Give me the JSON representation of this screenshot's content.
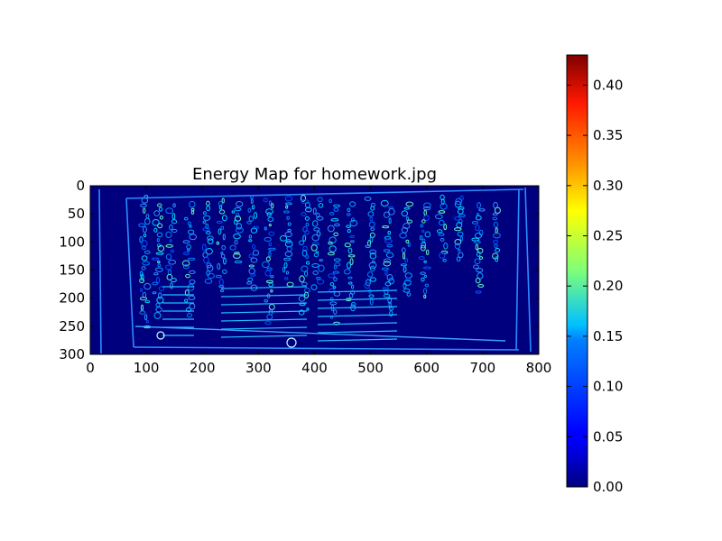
{
  "chart_data": {
    "type": "heatmap",
    "title": "Energy Map for homework.jpg",
    "xlabel": "",
    "ylabel": "",
    "x_ticks": [
      0,
      100,
      200,
      300,
      400,
      500,
      600,
      700,
      800
    ],
    "y_ticks": [
      0,
      50,
      100,
      150,
      200,
      250,
      300
    ],
    "xlim": [
      0,
      800
    ],
    "ylim": [
      300,
      0
    ],
    "colormap": "jet",
    "colorbar": {
      "range": [
        0,
        0.43
      ],
      "ticks": [
        "0.00",
        "0.05",
        "0.10",
        "0.15",
        "0.20",
        "0.25",
        "0.30",
        "0.35",
        "0.40"
      ]
    },
    "background_color": "#00007f",
    "grid": false
  }
}
